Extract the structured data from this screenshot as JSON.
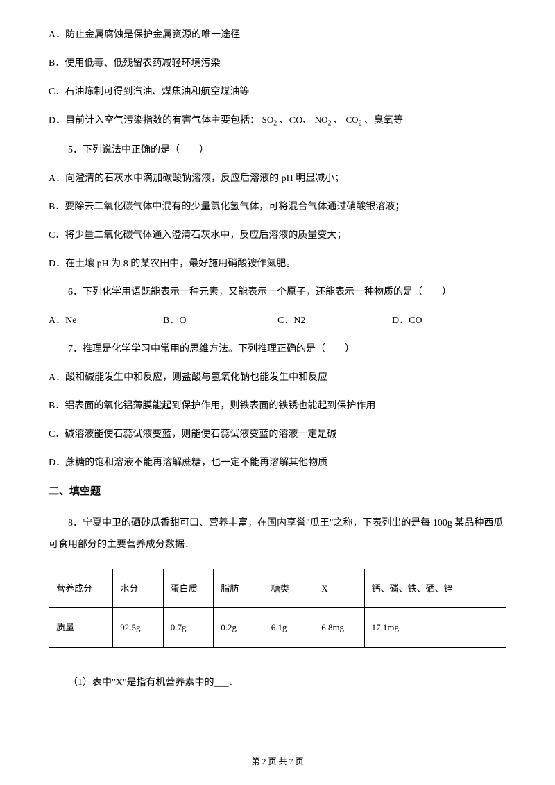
{
  "q4_options": {
    "a": "A．防止金属腐蚀是保护金属资源的唯一途径",
    "b": "B．使用低毒、低残留农药减轻环境污染",
    "c": "C．石油炼制可得到汽油、煤焦油和航空煤油等",
    "d_prefix": "D．目前计入空气污染指数的有害气体主要包括：",
    "d_so2": "SO",
    "d_so2_sub": "2",
    "d_sep1": "、CO、",
    "d_no2": "NO",
    "d_no2_sub": "2",
    "d_sep2": "、",
    "d_co2": "CO",
    "d_co2_sub": "2",
    "d_suffix": "、臭氧等"
  },
  "q5": {
    "stem": "5．下列说法中正确的是（　　）",
    "a": "A．向澄清的石灰水中滴加碳酸钠溶液，反应后溶液的 pH 明显减小；",
    "b": "B．要除去二氧化碳气体中混有的少量氯化氢气体，可将混合气体通过硝酸银溶液；",
    "c": "C．将少量二氧化碳气体通入澄清石灰水中，反应后溶液的质量变大；",
    "d": "D．在土壤 pH 为 8 的某农田中，最好施用硝酸铵作氮肥。"
  },
  "q6": {
    "stem": "6．下列化学用语既能表示一种元素，又能表示一个原子，还能表示一种物质的是（　　）",
    "a": "A．Ne",
    "b": "B．O",
    "c": "C．N2",
    "d": "D．CO"
  },
  "q7": {
    "stem": "7．推理是化学学习中常用的思维方法。下列推理正确的是（　　）",
    "a": "A．酸和碱能发生中和反应，则盐酸与氢氧化钠也能发生中和反应",
    "b": "B．铝表面的氧化铝薄膜能起到保护作用，则铁表面的铁锈也能起到保护作用",
    "c": "C．碱溶液能使石蕊试液变蓝，则能使石蕊试液变蓝的溶液一定是碱",
    "d": "D．蔗糖的饱和溶液不能再溶解蔗糖，也一定不能再溶解其他物质"
  },
  "section2": "二、填空题",
  "q8": {
    "text": "8．宁夏中卫的硒砂瓜香甜可口、营养丰富，在国内享誉\"瓜王\"之称，下表列出的是每 100g 某品种西瓜可食用部分的主要营养成分数据．",
    "sub1": "（1）表中\"X\"是指有机营养素中的___．"
  },
  "table": {
    "headers": [
      "营养成分",
      "水分",
      "蛋白质",
      "脂肪",
      "糖类",
      "X",
      "钙、磷、铁、硒、锌"
    ],
    "row_label": "质量",
    "values": [
      "92.5g",
      "0.7g",
      "0.2g",
      "6.1g",
      "6.8mg",
      "17.1mg"
    ]
  },
  "footer": "第 2 页 共 7 页",
  "col_widths": [
    "14%",
    "11%",
    "11%",
    "11%",
    "11%",
    "11%",
    "31%"
  ]
}
